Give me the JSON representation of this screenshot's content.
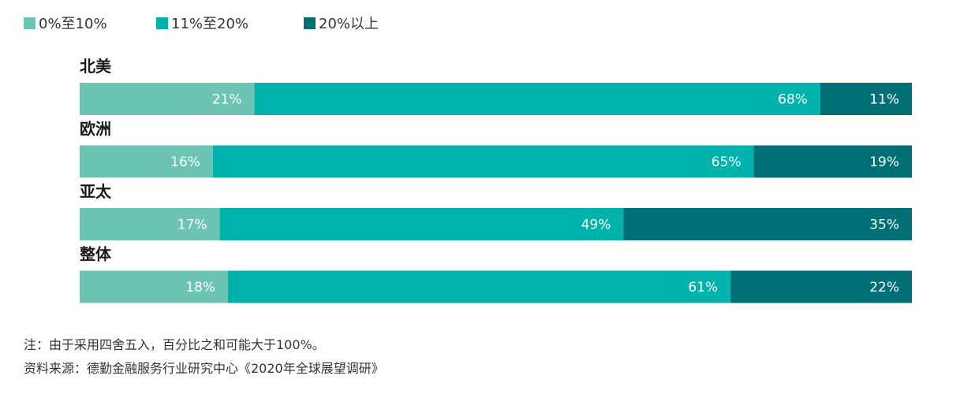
{
  "colors": {
    "low": "#6cc5b3",
    "mid": "#00b2ac",
    "high": "#006f76"
  },
  "chart_data": {
    "type": "bar",
    "orientation": "horizontal",
    "stacked": true,
    "categories": [
      "北美",
      "欧洲",
      "亚太",
      "整体"
    ],
    "series": [
      {
        "name": "0%至10%",
        "values": [
          21,
          16,
          17,
          18
        ],
        "labels": [
          "21%",
          "16%",
          "17%",
          "18%"
        ]
      },
      {
        "name": "11%至20%",
        "values": [
          68,
          65,
          49,
          61
        ],
        "labels": [
          "68%",
          "65%",
          "49%",
          "61%"
        ]
      },
      {
        "name": "20%以上",
        "values": [
          11,
          19,
          35,
          22
        ],
        "labels": [
          "11%",
          "19%",
          "35%",
          "22%"
        ]
      }
    ],
    "legend_position": "top-left",
    "grid": false,
    "title": "",
    "xlabel": "",
    "ylabel": ""
  },
  "notes": {
    "note": "注：由于采用四舍五入，百分比之和可能大于100%。",
    "source": "资料来源：德勤金融服务行业研究中心《2020年全球展望调研》"
  }
}
